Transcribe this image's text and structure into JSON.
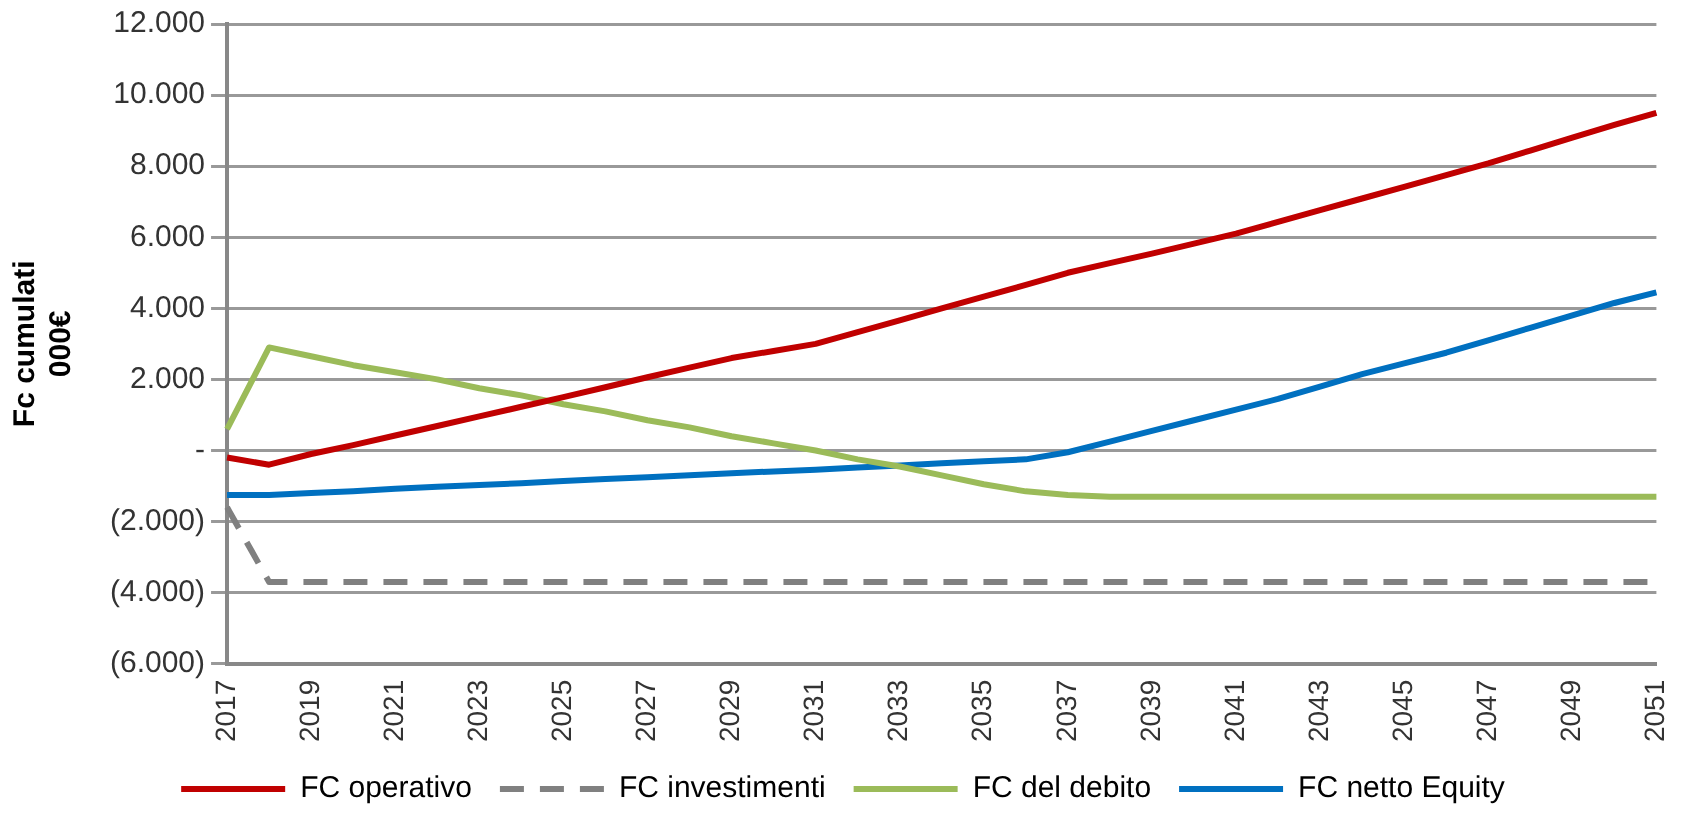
{
  "chart_data": {
    "type": "line",
    "ylabel": "Fc cumulati\n000€",
    "categories": [
      "2017",
      null,
      "2019",
      null,
      "2021",
      null,
      "2023",
      null,
      "2025",
      null,
      "2027",
      null,
      "2029",
      null,
      "2031",
      null,
      "2033",
      null,
      "2035",
      null,
      "2037",
      null,
      "2039",
      null,
      "2041",
      null,
      "2043",
      null,
      "2045",
      null,
      "2047",
      null,
      "2049",
      null,
      "2051"
    ],
    "series": [
      {
        "name": "FC operativo",
        "color": "#c00000",
        "line_style": "solid",
        "values": [
          -200,
          -400,
          -100,
          150,
          420,
          690,
          960,
          1230,
          1500,
          1780,
          2060,
          2330,
          2600,
          2800,
          3000,
          3330,
          3660,
          4000,
          4330,
          4660,
          5000,
          5270,
          5540,
          5820,
          6100,
          6430,
          6760,
          7090,
          7420,
          7750,
          8080,
          8440,
          8800,
          9160,
          9500
        ]
      },
      {
        "name": "FC investimenti",
        "color": "#808080",
        "line_style": "dashed",
        "values": [
          -1600,
          -3700,
          -3700,
          -3700,
          -3700,
          -3700,
          -3700,
          -3700,
          -3700,
          -3700,
          -3700,
          -3700,
          -3700,
          -3700,
          -3700,
          -3700,
          -3700,
          -3700,
          -3700,
          -3700,
          -3700,
          -3700,
          -3700,
          -3700,
          -3700,
          -3700,
          -3700,
          -3700,
          -3700,
          -3700,
          -3700,
          -3700,
          -3700,
          -3700,
          -3700
        ]
      },
      {
        "name": "FC del debito",
        "color": "#9bbb59",
        "line_style": "solid",
        "values": [
          600,
          2900,
          2650,
          2400,
          2200,
          2000,
          1750,
          1550,
          1300,
          1100,
          850,
          650,
          400,
          200,
          0,
          -250,
          -450,
          -700,
          -950,
          -1150,
          -1250,
          -1300,
          -1300,
          -1300,
          -1300,
          -1300,
          -1300,
          -1300,
          -1300,
          -1300,
          -1300,
          -1300,
          -1300,
          -1300,
          -1300
        ]
      },
      {
        "name": "FC netto Equity",
        "color": "#0070c0",
        "line_style": "solid",
        "values": [
          -1250,
          -1250,
          -1200,
          -1150,
          -1080,
          -1020,
          -970,
          -920,
          -860,
          -800,
          -750,
          -700,
          -640,
          -590,
          -540,
          -480,
          -420,
          -360,
          -300,
          -250,
          -50,
          250,
          550,
          850,
          1150,
          1450,
          1800,
          2150,
          2450,
          2750,
          3100,
          3450,
          3800,
          4150,
          4450
        ]
      }
    ],
    "ylim": [
      -6000,
      12000
    ],
    "yticks": [
      {
        "value": -6000,
        "label": "(6.000)"
      },
      {
        "value": -4000,
        "label": "(4.000)"
      },
      {
        "value": -2000,
        "label": "(2.000)"
      },
      {
        "value": 0,
        "label": "-"
      },
      {
        "value": 2000,
        "label": "2.000"
      },
      {
        "value": 4000,
        "label": "4.000"
      },
      {
        "value": 6000,
        "label": "6.000"
      },
      {
        "value": 8000,
        "label": "8.000"
      },
      {
        "value": 10000,
        "label": "10.000"
      },
      {
        "value": 12000,
        "label": "12.000"
      }
    ],
    "grid": "y",
    "legend": "bottom",
    "marker": "none"
  }
}
